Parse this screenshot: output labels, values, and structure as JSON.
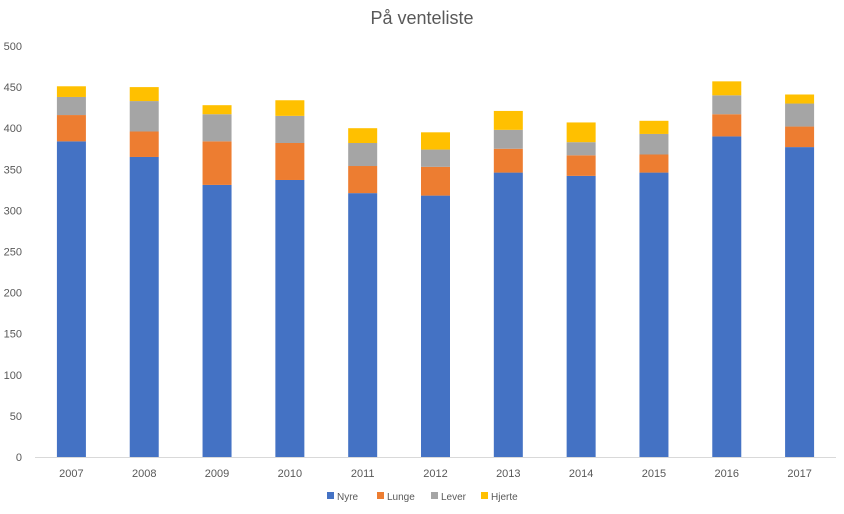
{
  "chart_data": {
    "type": "bar",
    "stacked": true,
    "title": "På venteliste",
    "xlabel": "",
    "ylabel": "",
    "categories": [
      "2007",
      "2008",
      "2009",
      "2010",
      "2011",
      "2012",
      "2013",
      "2014",
      "2015",
      "2016",
      "2017"
    ],
    "series": [
      {
        "name": "Nyre",
        "color": "#4472C4",
        "values": [
          384,
          365,
          331,
          337,
          321,
          318,
          346,
          342,
          346,
          390,
          377
        ]
      },
      {
        "name": "Lunge",
        "color": "#ED7D31",
        "values": [
          32,
          31,
          53,
          45,
          33,
          35,
          29,
          25,
          22,
          27,
          25
        ]
      },
      {
        "name": "Lever",
        "color": "#A5A5A5",
        "values": [
          22,
          37,
          33,
          33,
          28,
          21,
          23,
          16,
          25,
          23,
          28
        ]
      },
      {
        "name": "Hjerte",
        "color": "#FFC000",
        "values": [
          13,
          17,
          11,
          19,
          18,
          21,
          23,
          24,
          16,
          17,
          11
        ]
      }
    ],
    "ylim": [
      0,
      500
    ],
    "yticks": [
      0,
      50,
      100,
      150,
      200,
      250,
      300,
      350,
      400,
      450,
      500
    ],
    "grid": false,
    "legend_position": "bottom"
  }
}
